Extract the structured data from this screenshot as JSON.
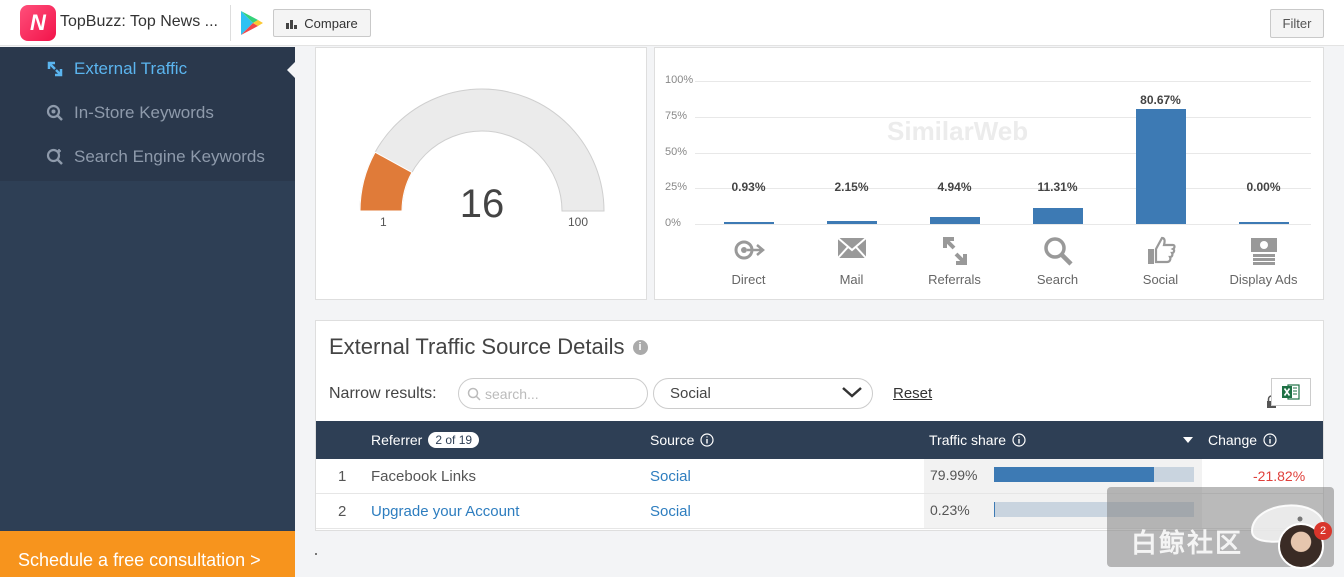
{
  "topbar": {
    "app_title": "TopBuzz: Top News ...",
    "logo_letter": "N",
    "compare_label": "Compare",
    "filter_label": "Filter"
  },
  "sidebar": {
    "items": [
      {
        "label": "External Traffic",
        "icon": "external-traffic-icon",
        "active": true
      },
      {
        "label": "In-Store Keywords",
        "icon": "instore-search-icon",
        "active": false
      },
      {
        "label": "Search Engine Keywords",
        "icon": "search-engine-icon",
        "active": false
      }
    ],
    "cta_label": "Schedule a free consultation >"
  },
  "gauge": {
    "value": "16",
    "min_label": "1",
    "max_label": "100",
    "fill_fraction": 0.16,
    "fill_color": "#e07b39",
    "track_color": "#ebebeb"
  },
  "chart_data": {
    "type": "bar",
    "categories": [
      "Direct",
      "Mail",
      "Referrals",
      "Search",
      "Social",
      "Display Ads"
    ],
    "values": [
      0.93,
      2.15,
      4.94,
      11.31,
      80.67,
      0.0
    ],
    "value_labels": [
      "0.93%",
      "2.15%",
      "4.94%",
      "11.31%",
      "80.67%",
      "0.00%"
    ],
    "y_ticks": [
      "100%",
      "75%",
      "50%",
      "25%",
      "0%"
    ],
    "ylim": [
      0,
      100
    ],
    "grid": true,
    "bar_color": "#3d7ab4",
    "watermark": "SimilarWeb"
  },
  "details": {
    "title": "External Traffic Source Details",
    "narrow_label": "Narrow results:",
    "search_placeholder": "search...",
    "source_filter": "Social",
    "reset_label": "Reset",
    "columns": {
      "referrer": "Referrer",
      "count": "2 of 19",
      "source": "Source",
      "traffic_share": "Traffic share",
      "change": "Change"
    },
    "rows": [
      {
        "rank": "1",
        "referrer": "Facebook Links",
        "source": "Social",
        "share": "79.99%",
        "share_value": 0.7999,
        "change": "-21.82%"
      },
      {
        "rank": "2",
        "referrer": "Upgrade your Account",
        "source": "Social",
        "share": "0.23%",
        "share_value": 0.0023,
        "change": ""
      }
    ]
  },
  "overlay": {
    "watermark_text": "白鲸社区",
    "notification_count": "2"
  }
}
